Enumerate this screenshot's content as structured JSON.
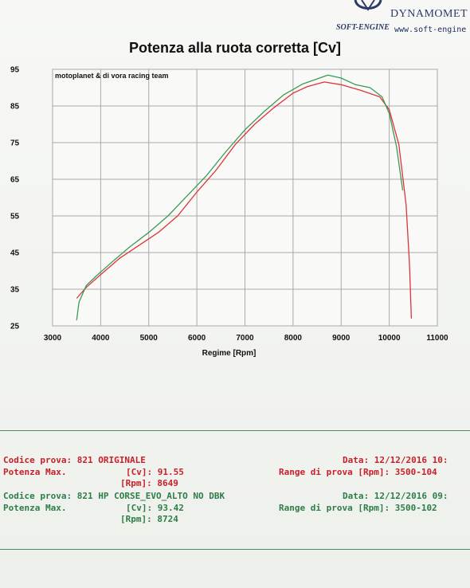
{
  "brand": {
    "name": "DYNAMOMET",
    "logo_text": "SOFT-ENGINE",
    "url": "www.soft-engine"
  },
  "chart_title": "Potenza alla ruota corretta [Cv]",
  "colors": {
    "series_red": "#e0323a",
    "series_green": "#3a9a55",
    "grid": "#a9aaa7"
  },
  "chart_data": {
    "type": "line",
    "title": "Potenza alla ruota corretta [Cv]",
    "annotation": "motoplanet & di vora racing team",
    "xlabel": "Regime [Rpm]",
    "ylabel": "",
    "xlim": [
      3000,
      11000
    ],
    "ylim": [
      25,
      95
    ],
    "x_ticks": [
      "3000",
      "4000",
      "5000",
      "6000",
      "7000",
      "8000",
      "9000",
      "10000",
      "11000"
    ],
    "y_ticks": [
      "95",
      "85",
      "75",
      "65",
      "55",
      "45",
      "35",
      "25"
    ],
    "grid": true,
    "series": [
      {
        "name": "821 ORIGINALE",
        "color": "red",
        "points": [
          [
            3500,
            32.5
          ],
          [
            3700,
            35.5
          ],
          [
            4000,
            39.0
          ],
          [
            4400,
            43.5
          ],
          [
            4800,
            47.0
          ],
          [
            5200,
            50.5
          ],
          [
            5600,
            55.0
          ],
          [
            6000,
            61.5
          ],
          [
            6400,
            67.5
          ],
          [
            6800,
            74.5
          ],
          [
            7200,
            80.0
          ],
          [
            7600,
            84.5
          ],
          [
            8000,
            88.5
          ],
          [
            8300,
            90.3
          ],
          [
            8649,
            91.55
          ],
          [
            9000,
            90.8
          ],
          [
            9400,
            89.3
          ],
          [
            9800,
            87.5
          ],
          [
            10000,
            84.0
          ],
          [
            10200,
            74.5
          ],
          [
            10350,
            58.0
          ],
          [
            10420,
            42.0
          ],
          [
            10460,
            27.0
          ]
        ]
      },
      {
        "name": "821 HP CORSE_EVO_ALTO NO DBK",
        "color": "green",
        "points": [
          [
            3500,
            26.5
          ],
          [
            3550,
            31.5
          ],
          [
            3700,
            36.0
          ],
          [
            3900,
            38.5
          ],
          [
            4200,
            42.0
          ],
          [
            4600,
            46.5
          ],
          [
            5000,
            50.5
          ],
          [
            5400,
            55.0
          ],
          [
            5800,
            60.5
          ],
          [
            6200,
            66.0
          ],
          [
            6600,
            72.5
          ],
          [
            7000,
            78.5
          ],
          [
            7400,
            83.5
          ],
          [
            7800,
            88.0
          ],
          [
            8200,
            91.0
          ],
          [
            8724,
            93.42
          ],
          [
            9000,
            92.6
          ],
          [
            9300,
            90.8
          ],
          [
            9600,
            90.0
          ],
          [
            9850,
            87.5
          ],
          [
            10000,
            83.0
          ],
          [
            10150,
            74.0
          ],
          [
            10280,
            62.0
          ]
        ]
      }
    ]
  },
  "results": {
    "test1": {
      "code_label": "Codice prova:",
      "code_value": "821 ORIGINALE",
      "date_label": "Data:",
      "date_value": "12/12/2016 10:",
      "power_label": "Potenza Max.",
      "cv_label": "[Cv]:",
      "cv_value": "91.55",
      "range_label": "Range di prova [Rpm]:",
      "range_value": "3500-104",
      "rpm_label": "[Rpm]:",
      "rpm_value": "8649"
    },
    "test2": {
      "code_label": "Codice prova:",
      "code_value": "821 HP CORSE_EVO_ALTO NO DBK",
      "date_label": "Data:",
      "date_value": "12/12/2016 09:",
      "power_label": "Potenza Max.",
      "cv_label": "[Cv]:",
      "cv_value": "93.42",
      "range_label": "Range di prova [Rpm]:",
      "range_value": "3500-102",
      "rpm_label": "[Rpm]:",
      "rpm_value": "8724"
    }
  }
}
